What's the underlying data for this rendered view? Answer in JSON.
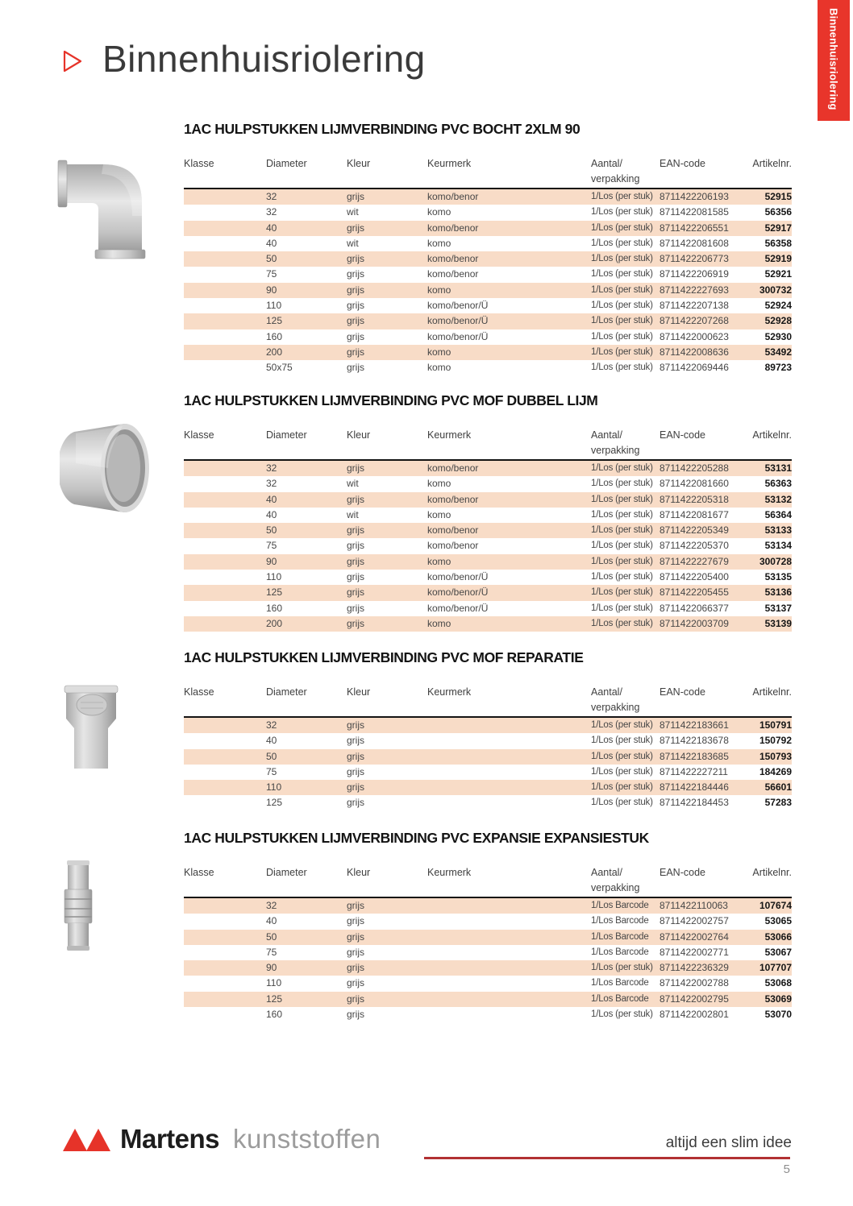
{
  "page": {
    "side_tab_label": "Binnenhuisriolering",
    "title": "Binnenhuisriolering",
    "tagline": "altijd een slim idee",
    "page_number": "5"
  },
  "brand": {
    "name": "Martens",
    "suffix": "kunststoffen"
  },
  "columns": {
    "klasse": "Klasse",
    "diameter": "Diameter",
    "kleur": "Kleur",
    "keurmerk": "Keurmerk",
    "aantal_line1": "Aantal/",
    "aantal_line2": "verpakking",
    "ean": "EAN-code",
    "artikelnr": "Artikelnr."
  },
  "colors": {
    "accent_red": "#e8352b",
    "logo_red": "#e63329",
    "footer_line_red": "#b23133",
    "row_shade": "#f8dcc7"
  },
  "product_images": [
    "pvc-elbow-90",
    "pvc-double-socket-coupling",
    "pvc-repair-socket",
    "pvc-expansion-piece"
  ],
  "sections": [
    {
      "title": "1AC HULPSTUKKEN LIJMVERBINDING PVC BOCHT 2XLM 90",
      "rows": [
        {
          "diameter": "32",
          "kleur": "grijs",
          "keurmerk": "komo/benor",
          "aantal": "1/Los (per stuk)",
          "ean": "8711422206193",
          "artikelnr": "52915"
        },
        {
          "diameter": "32",
          "kleur": "wit",
          "keurmerk": "komo",
          "aantal": "1/Los (per stuk)",
          "ean": "8711422081585",
          "artikelnr": "56356"
        },
        {
          "diameter": "40",
          "kleur": "grijs",
          "keurmerk": "komo/benor",
          "aantal": "1/Los (per stuk)",
          "ean": "8711422206551",
          "artikelnr": "52917"
        },
        {
          "diameter": "40",
          "kleur": "wit",
          "keurmerk": "komo",
          "aantal": "1/Los (per stuk)",
          "ean": "8711422081608",
          "artikelnr": "56358"
        },
        {
          "diameter": "50",
          "kleur": "grijs",
          "keurmerk": "komo/benor",
          "aantal": "1/Los (per stuk)",
          "ean": "8711422206773",
          "artikelnr": "52919"
        },
        {
          "diameter": "75",
          "kleur": "grijs",
          "keurmerk": "komo/benor",
          "aantal": "1/Los (per stuk)",
          "ean": "8711422206919",
          "artikelnr": "52921"
        },
        {
          "diameter": "90",
          "kleur": "grijs",
          "keurmerk": "komo",
          "aantal": "1/Los (per stuk)",
          "ean": "8711422227693",
          "artikelnr": "300732"
        },
        {
          "diameter": "110",
          "kleur": "grijs",
          "keurmerk": "komo/benor/Ü",
          "aantal": "1/Los (per stuk)",
          "ean": "8711422207138",
          "artikelnr": "52924"
        },
        {
          "diameter": "125",
          "kleur": "grijs",
          "keurmerk": "komo/benor/Ü",
          "aantal": "1/Los (per stuk)",
          "ean": "8711422207268",
          "artikelnr": "52928"
        },
        {
          "diameter": "160",
          "kleur": "grijs",
          "keurmerk": "komo/benor/Ü",
          "aantal": "1/Los (per stuk)",
          "ean": "8711422000623",
          "artikelnr": "52930"
        },
        {
          "diameter": "200",
          "kleur": "grijs",
          "keurmerk": "komo",
          "aantal": "1/Los (per stuk)",
          "ean": "8711422008636",
          "artikelnr": "53492"
        },
        {
          "diameter": "50x75",
          "kleur": "grijs",
          "keurmerk": "komo",
          "aantal": "1/Los (per stuk)",
          "ean": "8711422069446",
          "artikelnr": "89723"
        }
      ]
    },
    {
      "title": "1AC HULPSTUKKEN LIJMVERBINDING PVC MOF DUBBEL LIJM",
      "rows": [
        {
          "diameter": "32",
          "kleur": "grijs",
          "keurmerk": "komo/benor",
          "aantal": "1/Los (per stuk)",
          "ean": "8711422205288",
          "artikelnr": "53131"
        },
        {
          "diameter": "32",
          "kleur": "wit",
          "keurmerk": "komo",
          "aantal": "1/Los (per stuk)",
          "ean": "8711422081660",
          "artikelnr": "56363"
        },
        {
          "diameter": "40",
          "kleur": "grijs",
          "keurmerk": "komo/benor",
          "aantal": "1/Los (per stuk)",
          "ean": "8711422205318",
          "artikelnr": "53132"
        },
        {
          "diameter": "40",
          "kleur": "wit",
          "keurmerk": "komo",
          "aantal": "1/Los (per stuk)",
          "ean": "8711422081677",
          "artikelnr": "56364"
        },
        {
          "diameter": "50",
          "kleur": "grijs",
          "keurmerk": "komo/benor",
          "aantal": "1/Los (per stuk)",
          "ean": "8711422205349",
          "artikelnr": "53133"
        },
        {
          "diameter": "75",
          "kleur": "grijs",
          "keurmerk": "komo/benor",
          "aantal": "1/Los (per stuk)",
          "ean": "8711422205370",
          "artikelnr": "53134"
        },
        {
          "diameter": "90",
          "kleur": "grijs",
          "keurmerk": "komo",
          "aantal": "1/Los (per stuk)",
          "ean": "8711422227679",
          "artikelnr": "300728"
        },
        {
          "diameter": "110",
          "kleur": "grijs",
          "keurmerk": "komo/benor/Ü",
          "aantal": "1/Los (per stuk)",
          "ean": "8711422205400",
          "artikelnr": "53135"
        },
        {
          "diameter": "125",
          "kleur": "grijs",
          "keurmerk": "komo/benor/Ü",
          "aantal": "1/Los (per stuk)",
          "ean": "8711422205455",
          "artikelnr": "53136"
        },
        {
          "diameter": "160",
          "kleur": "grijs",
          "keurmerk": "komo/benor/Ü",
          "aantal": "1/Los (per stuk)",
          "ean": "8711422066377",
          "artikelnr": "53137"
        },
        {
          "diameter": "200",
          "kleur": "grijs",
          "keurmerk": "komo",
          "aantal": "1/Los (per stuk)",
          "ean": "8711422003709",
          "artikelnr": "53139"
        }
      ]
    },
    {
      "title": "1AC HULPSTUKKEN LIJMVERBINDING PVC MOF REPARATIE",
      "rows": [
        {
          "diameter": "32",
          "kleur": "grijs",
          "aantal": "1/Los (per stuk)",
          "ean": "8711422183661",
          "artikelnr": "150791"
        },
        {
          "diameter": "40",
          "kleur": "grijs",
          "aantal": "1/Los (per stuk)",
          "ean": "8711422183678",
          "artikelnr": "150792"
        },
        {
          "diameter": "50",
          "kleur": "grijs",
          "aantal": "1/Los (per stuk)",
          "ean": "8711422183685",
          "artikelnr": "150793"
        },
        {
          "diameter": "75",
          "kleur": "grijs",
          "aantal": "1/Los (per stuk)",
          "ean": "8711422227211",
          "artikelnr": "184269"
        },
        {
          "diameter": "110",
          "kleur": "grijs",
          "aantal": "1/Los (per stuk)",
          "ean": "8711422184446",
          "artikelnr": "56601"
        },
        {
          "diameter": "125",
          "kleur": "grijs",
          "aantal": "1/Los (per stuk)",
          "ean": "8711422184453",
          "artikelnr": "57283"
        }
      ]
    },
    {
      "title": "1AC HULPSTUKKEN LIJMVERBINDING PVC EXPANSIE EXPANSIESTUK",
      "rows": [
        {
          "diameter": "32",
          "kleur": "grijs",
          "aantal": "1/Los Barcode",
          "ean": "8711422110063",
          "artikelnr": "107674"
        },
        {
          "diameter": "40",
          "kleur": "grijs",
          "aantal": "1/Los Barcode",
          "ean": "8711422002757",
          "artikelnr": "53065"
        },
        {
          "diameter": "50",
          "kleur": "grijs",
          "aantal": "1/Los Barcode",
          "ean": "8711422002764",
          "artikelnr": "53066"
        },
        {
          "diameter": "75",
          "kleur": "grijs",
          "aantal": "1/Los Barcode",
          "ean": "8711422002771",
          "artikelnr": "53067"
        },
        {
          "diameter": "90",
          "kleur": "grijs",
          "aantal": "1/Los (per stuk)",
          "ean": "8711422236329",
          "artikelnr": "107707"
        },
        {
          "diameter": "110",
          "kleur": "grijs",
          "aantal": "1/Los Barcode",
          "ean": "8711422002788",
          "artikelnr": "53068"
        },
        {
          "diameter": "125",
          "kleur": "grijs",
          "aantal": "1/Los Barcode",
          "ean": "8711422002795",
          "artikelnr": "53069"
        },
        {
          "diameter": "160",
          "kleur": "grijs",
          "aantal": "1/Los (per stuk)",
          "ean": "8711422002801",
          "artikelnr": "53070"
        }
      ]
    }
  ]
}
